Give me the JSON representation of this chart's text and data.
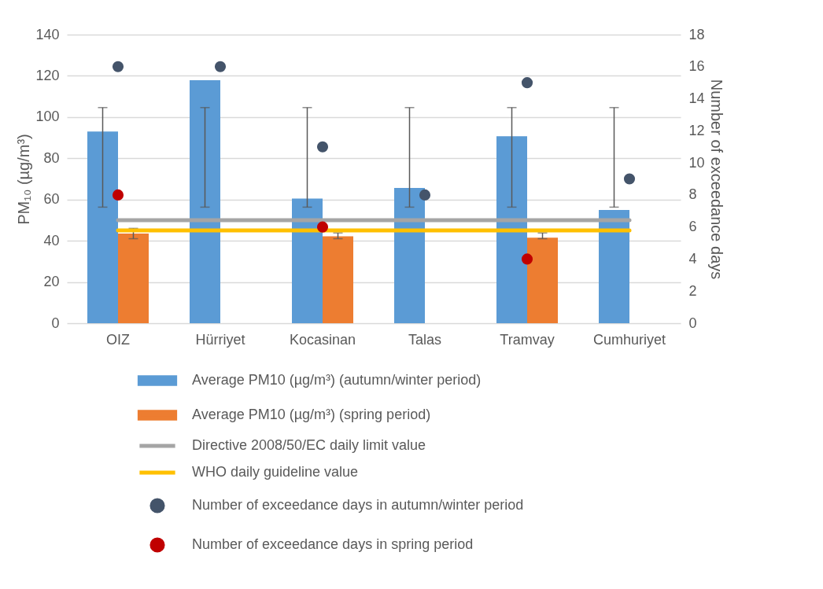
{
  "chart_data": {
    "type": "bar",
    "ylabel": "PM₁₀ (µg/m³)",
    "y2label": "Number of exceedance days",
    "categories": [
      "OIZ",
      "Hürriyet",
      "Kocasinan",
      "Talas",
      "Tramvay",
      "Cumhuriyet"
    ],
    "ylim": [
      0,
      140
    ],
    "yticks": [
      0,
      20,
      40,
      60,
      80,
      100,
      120,
      140
    ],
    "y2lim": [
      0,
      18
    ],
    "y2ticks": [
      0,
      2,
      4,
      6,
      8,
      10,
      12,
      14,
      16,
      18
    ],
    "grid": "y",
    "legend": "bottom",
    "series": [
      {
        "name": "Average PM10 (µg/m³) (autumn/winter period)",
        "color": "#5b9bd5",
        "values": [
          93,
          117.9,
          60.5,
          65.6,
          90.7,
          54.9
        ],
        "errors": [
          [
            56.3,
            104.6
          ],
          [
            56.3,
            104.6
          ],
          [
            56.3,
            104.6
          ],
          [
            56.3,
            104.6
          ],
          [
            56.3,
            104.6
          ],
          [
            56.3,
            104.6
          ]
        ]
      },
      {
        "name": "Average PM10 (µg/m³) (spring period)",
        "color": "#ed7d31",
        "values": [
          43.5,
          null,
          42.2,
          null,
          41.5,
          null
        ],
        "errors": [
          [
            41,
            46
          ],
          null,
          [
            41,
            43.8
          ],
          null,
          [
            41,
            43.8
          ],
          null
        ]
      },
      {
        "name": "Directive 2008/50/EC daily limit value",
        "type": "line",
        "color": "#a5a5a5",
        "values": [
          50,
          50,
          50,
          50,
          50,
          50
        ]
      },
      {
        "name": "WHO daily guideline value",
        "type": "line",
        "color": "#ffc000",
        "values": [
          45,
          45,
          45,
          45,
          45,
          45
        ]
      },
      {
        "name": "Number of exceedance days in autumn/winter period",
        "type": "scatter",
        "axis": "y2",
        "marker": "circle",
        "color": "#44546a",
        "values": [
          16,
          16,
          11,
          8,
          15,
          9
        ]
      },
      {
        "name": "Number of exceedance days in spring period",
        "type": "scatter",
        "axis": "y2",
        "marker": "circle",
        "color": "#c00000",
        "values": [
          8,
          null,
          6,
          null,
          4,
          null
        ]
      }
    ]
  }
}
